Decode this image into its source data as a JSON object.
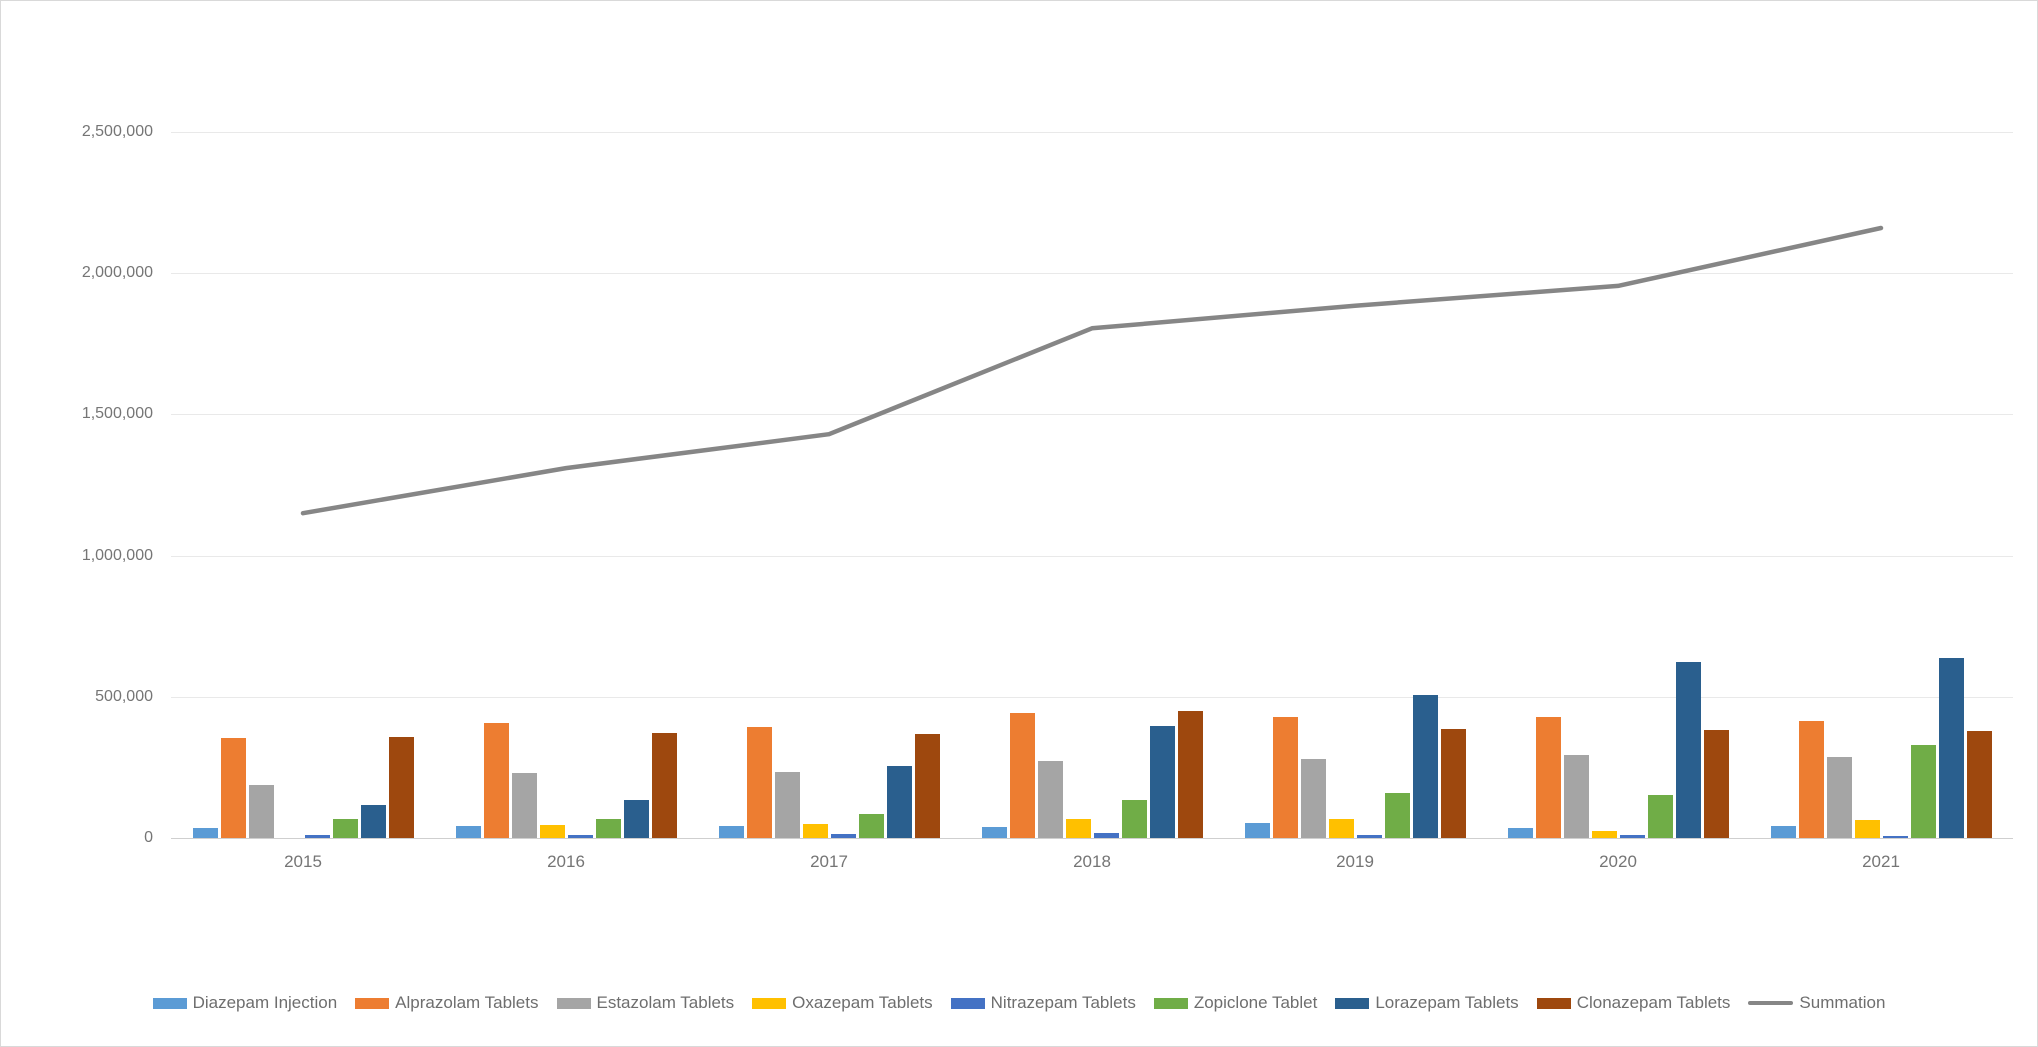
{
  "chart_data": {
    "type": "bar",
    "subtype": "clustered-bar-with-line",
    "title": "",
    "xlabel": "",
    "ylabel": "",
    "categories": [
      "2015",
      "2016",
      "2017",
      "2018",
      "2019",
      "2020",
      "2021"
    ],
    "series": [
      {
        "name": "Diazepam Injection",
        "color": "#5B9BD5",
        "values": [
          35000,
          41000,
          41000,
          40000,
          52000,
          37000,
          42000
        ]
      },
      {
        "name": "Alprazolam Tablets",
        "color": "#ED7D31",
        "values": [
          355000,
          406000,
          392000,
          442000,
          429000,
          430000,
          415000
        ]
      },
      {
        "name": "Estazolam Tablets",
        "color": "#A5A5A5",
        "values": [
          188000,
          229000,
          234000,
          273000,
          281000,
          295000,
          287000
        ]
      },
      {
        "name": "Oxazepam Tablets",
        "color": "#FFC000",
        "values": [
          0,
          45000,
          51000,
          69000,
          66000,
          26000,
          64000
        ]
      },
      {
        "name": "Nitrazepam Tablets",
        "color": "#4472C4",
        "values": [
          12000,
          9000,
          13000,
          19000,
          10000,
          10000,
          8000
        ]
      },
      {
        "name": "Zopiclone Tablet",
        "color": "#70AD47",
        "values": [
          67000,
          68000,
          86000,
          134000,
          160000,
          153000,
          330000
        ]
      },
      {
        "name": "Lorazepam Tablets",
        "color": "#2A5F8E",
        "values": [
          117000,
          135000,
          254000,
          396000,
          508000,
          624000,
          638000
        ]
      },
      {
        "name": "Clonazepam Tablets",
        "color": "#9E480E",
        "values": [
          358000,
          371000,
          368000,
          449000,
          386000,
          382000,
          379000
        ]
      }
    ],
    "line_series": {
      "name": "Summation",
      "color": "#868686",
      "values": [
        1150000,
        1310000,
        1430000,
        1805000,
        1885000,
        1955000,
        2160000
      ]
    },
    "ylim": [
      0,
      2500000
    ],
    "y_ticks": [
      "0",
      "500,000",
      "1,000,000",
      "1,500,000",
      "2,000,000",
      "2,500,000"
    ],
    "grid": true,
    "legend_position": "bottom"
  }
}
